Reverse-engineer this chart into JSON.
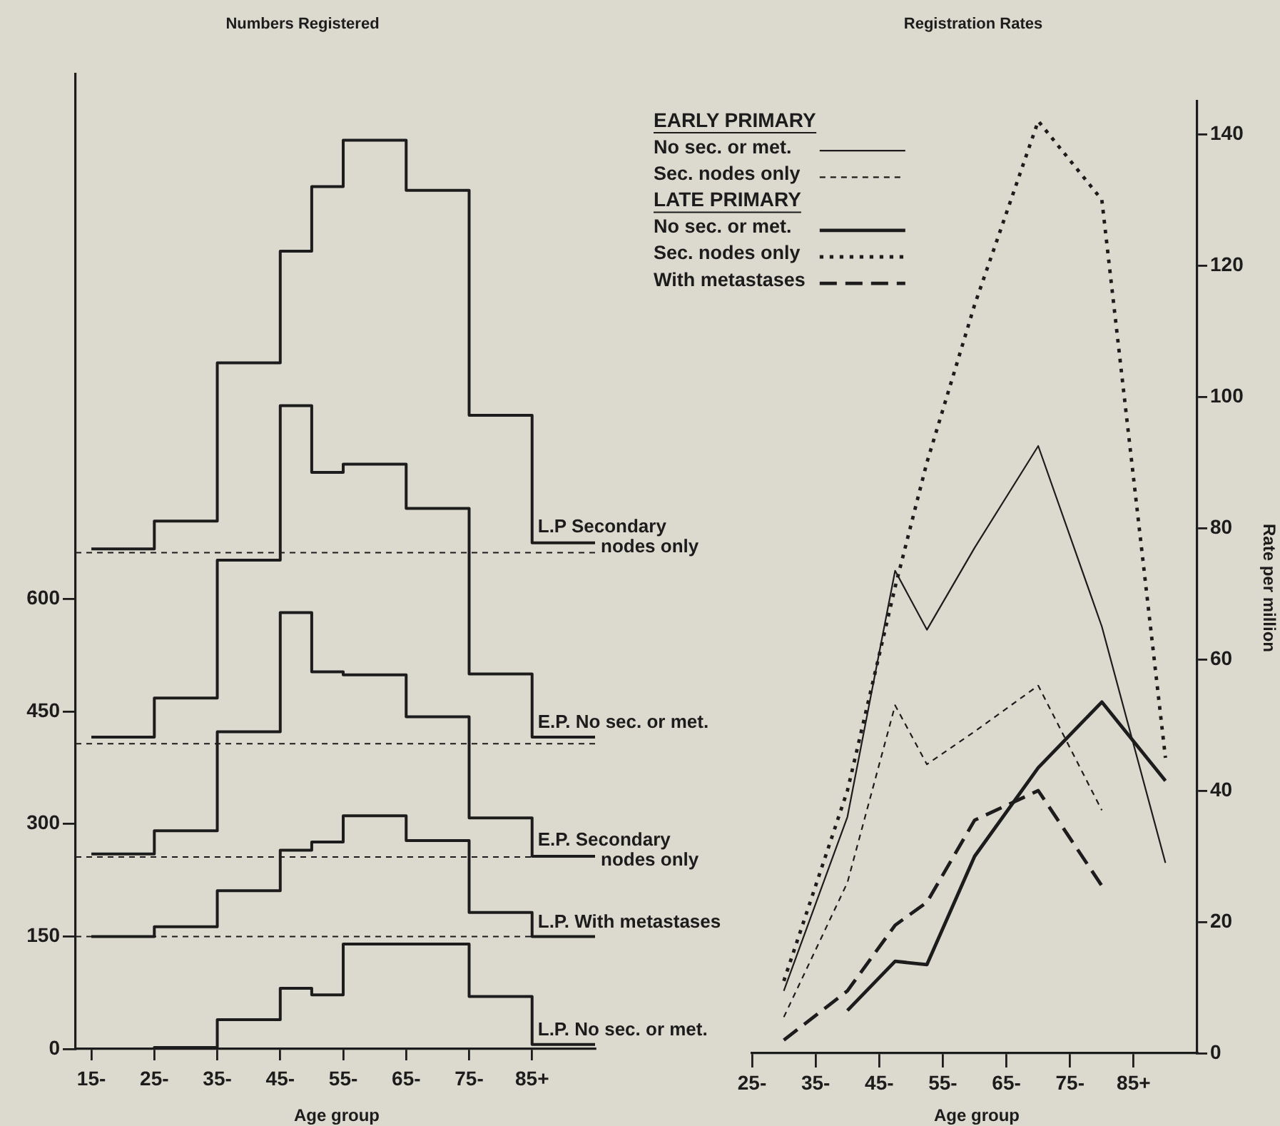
{
  "chart_data": [
    {
      "type": "step",
      "title": "Numbers Registered",
      "xlabel": "Age group",
      "x": [
        15,
        25,
        35,
        45,
        50,
        55,
        65,
        75,
        85,
        95
      ],
      "series": [
        {
          "name": "L.P Secondary nodes only",
          "color": "#1c1c1c",
          "values": [
            667,
            704,
            915,
            1064,
            1150,
            1212,
            1145,
            845,
            675,
            675
          ]
        },
        {
          "name": "E.P. No sec. or met.",
          "color": "#1c1c1c",
          "values": [
            416,
            468,
            652,
            858,
            769,
            780,
            721,
            500,
            416,
            416
          ]
        },
        {
          "name": "E.P. Secondary nodes only",
          "color": "#1c1c1c",
          "values": [
            260,
            291,
            423,
            582,
            503,
            499,
            443,
            308,
            257,
            257
          ]
        },
        {
          "name": "L.P. With metastases",
          "color": "#1c1c1c",
          "values": [
            150,
            163,
            211,
            265,
            276,
            311,
            278,
            182,
            150,
            150
          ]
        },
        {
          "name": "L.P. No sec. or met.",
          "color": "#1c1c1c",
          "values": [
            0,
            2,
            39,
            81,
            72,
            140,
            140,
            70,
            6,
            6
          ]
        }
      ],
      "xlim": [
        12.5,
        95
      ],
      "xticks": [
        {
          "value": 15,
          "label": "15-"
        },
        {
          "value": 25,
          "label": "25-"
        },
        {
          "value": 35,
          "label": "35-"
        },
        {
          "value": 45,
          "label": "45-"
        },
        {
          "value": 55,
          "label": "55-"
        },
        {
          "value": 65,
          "label": "65-"
        },
        {
          "value": 75,
          "label": "75-"
        },
        {
          "value": 85,
          "label": "85+"
        }
      ],
      "ylim": [
        0,
        1300
      ],
      "yticks": [
        0,
        150,
        300,
        450,
        600
      ],
      "ref_lines": [
        {
          "axis": "y",
          "value": 662,
          "color": "#1c1c1c",
          "line_style": "dashed"
        },
        {
          "axis": "y",
          "value": 407,
          "color": "#1c1c1c",
          "line_style": "dashed"
        },
        {
          "axis": "y",
          "value": 256,
          "color": "#1c1c1c",
          "line_style": "dashed"
        },
        {
          "axis": "y",
          "value": 150,
          "color": "#1c1c1c",
          "line_style": "dashed"
        }
      ],
      "legend": false,
      "line_style": "solid"
    },
    {
      "type": "line",
      "title": "Registration Rates",
      "xlabel": "Age group",
      "ylabel": "Rate per million",
      "series": [
        {
          "name": "No sec. or met.",
          "color": "#1c1c1c",
          "line_style": "solid",
          "x": [
            30,
            40,
            47.5,
            52.5,
            60,
            70,
            80,
            90
          ],
          "values": [
            9.5,
            36,
            73.5,
            64.5,
            77,
            92.5,
            65,
            29
          ]
        },
        {
          "name": "Sec. nodes only",
          "color": "#1c1c1c",
          "line_style": "dashed",
          "x": [
            30,
            40,
            47.5,
            52.5,
            60,
            70,
            80
          ],
          "values": [
            5.5,
            26,
            53,
            44,
            49,
            56,
            37
          ]
        },
        {
          "name": "No sec. or met.",
          "color": "#1c1c1c",
          "line_style": "solid",
          "x": [
            40,
            47.5,
            52.5,
            60,
            70,
            80,
            90
          ],
          "values": [
            6.5,
            14,
            13.5,
            30,
            43.5,
            53.5,
            41.5
          ]
        },
        {
          "name": "Sec. nodes only",
          "color": "#1c1c1c",
          "line_style": "dotted",
          "x": [
            30,
            40,
            47.5,
            52.5,
            60,
            70,
            80,
            90
          ],
          "values": [
            11,
            40,
            71,
            90,
            114,
            142,
            130,
            45
          ]
        },
        {
          "name": "With metastases",
          "color": "#1c1c1c",
          "line_style": "dashed",
          "x": [
            30,
            40,
            47.5,
            52.5,
            60,
            70,
            80
          ],
          "values": [
            2,
            9.5,
            19.5,
            23,
            35.5,
            40,
            25.5
          ]
        }
      ],
      "xlim": [
        25,
        95
      ],
      "xticks": [
        {
          "value": 25,
          "label": "25-"
        },
        {
          "value": 35,
          "label": "35-"
        },
        {
          "value": 45,
          "label": "45-"
        },
        {
          "value": 55,
          "label": "55-"
        },
        {
          "value": 65,
          "label": "65-"
        },
        {
          "value": 75,
          "label": "75-"
        },
        {
          "value": 85,
          "label": "85+"
        }
      ],
      "ylim": [
        0,
        145
      ],
      "yticks": [
        0,
        20,
        40,
        60,
        80,
        100,
        120,
        140
      ],
      "legend": "top left",
      "annotations": [
        "EARLY PRIMARY",
        "LATE PRIMARY"
      ]
    }
  ]
}
